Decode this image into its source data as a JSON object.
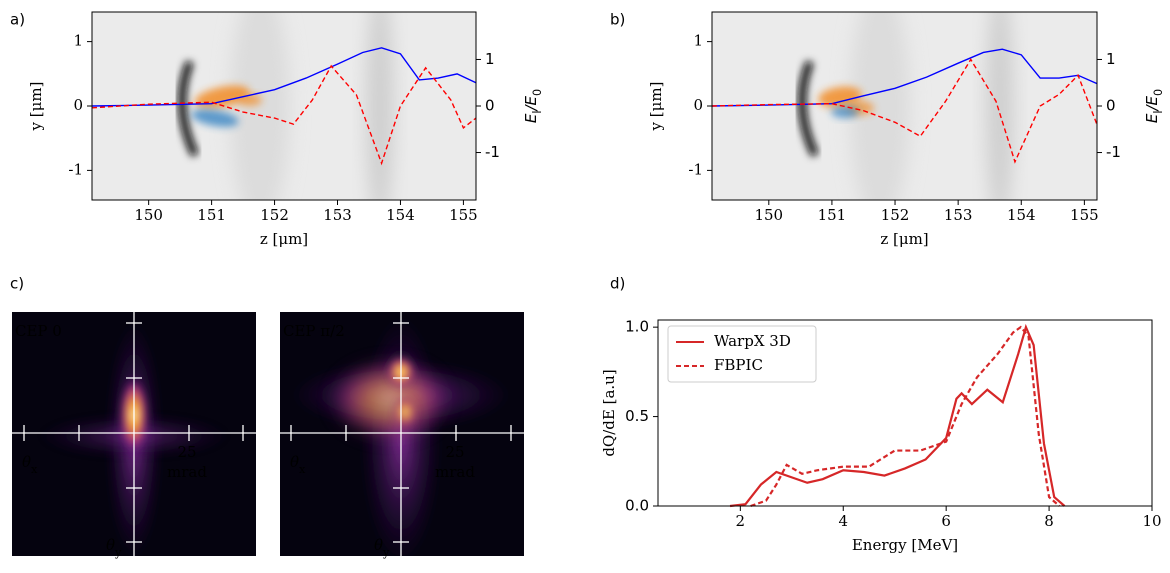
{
  "chart_data": [
    {
      "type": "line",
      "panel_label": "a)",
      "x_label": "z [μm]",
      "y_label": "y [μm]",
      "y2_label": [
        "E",
        "l",
        "/E",
        "0"
      ],
      "xlim": [
        149.1,
        155.2
      ],
      "xticks": [
        150,
        151,
        152,
        153,
        154,
        155
      ],
      "ylim": [
        -1.46,
        1.46
      ],
      "yticks": [
        -1,
        0,
        1
      ],
      "y2lim": [
        -2.02,
        2.02
      ],
      "y2ticks": [
        -1,
        0,
        1
      ],
      "series": [
        {
          "color": "#0000ff",
          "axis": "y2",
          "dash": false,
          "x": [
            149.1,
            150,
            151,
            151.5,
            152,
            152.5,
            153,
            153.4,
            153.7,
            154,
            154.3,
            154.6,
            154.9,
            155.2
          ],
          "values": [
            0,
            0.02,
            0.05,
            0.2,
            0.35,
            0.6,
            0.9,
            1.15,
            1.25,
            1.12,
            0.56,
            0.6,
            0.69,
            0.5
          ]
        },
        {
          "color": "#ff0000",
          "axis": "y2",
          "dash": true,
          "x": [
            149.1,
            150,
            151,
            151.5,
            152,
            152.3,
            152.6,
            152.9,
            153.3,
            153.7,
            154,
            154.4,
            154.8,
            155.0,
            155.2
          ],
          "values": [
            -0.04,
            0.04,
            0.08,
            -0.13,
            -0.26,
            -0.39,
            0.13,
            0.86,
            0.24,
            -1.23,
            0.0,
            0.82,
            0.13,
            -0.47,
            -0.26
          ]
        }
      ]
    },
    {
      "type": "line",
      "panel_label": "b)",
      "x_label": "z [μm]",
      "y_label": "y [μm]",
      "y2_label": [
        "E",
        "l",
        "/E",
        "0"
      ],
      "xlim": [
        149.1,
        155.2
      ],
      "xticks": [
        150,
        151,
        152,
        153,
        154,
        155
      ],
      "ylim": [
        -1.46,
        1.46
      ],
      "yticks": [
        -1,
        0,
        1
      ],
      "y2lim": [
        -2.02,
        2.02
      ],
      "y2ticks": [
        -1,
        0,
        1
      ],
      "series": [
        {
          "color": "#0000ff",
          "axis": "y2",
          "dash": false,
          "x": [
            149.1,
            150,
            151,
            151.5,
            152,
            152.5,
            153,
            153.4,
            153.7,
            154,
            154.3,
            154.6,
            154.9,
            155.2
          ],
          "values": [
            0,
            0.02,
            0.05,
            0.22,
            0.38,
            0.62,
            0.92,
            1.15,
            1.22,
            1.1,
            0.6,
            0.6,
            0.66,
            0.48
          ]
        },
        {
          "color": "#ff0000",
          "axis": "y2",
          "dash": true,
          "x": [
            149.1,
            150,
            151,
            151.5,
            152,
            152.4,
            152.8,
            153.2,
            153.6,
            153.9,
            154.3,
            154.6,
            154.9,
            155.2
          ],
          "values": [
            0,
            0.03,
            0.05,
            -0.1,
            -0.35,
            -0.65,
            0.1,
            1.0,
            0.1,
            -1.2,
            0.0,
            0.25,
            0.66,
            -0.4
          ]
        }
      ]
    },
    {
      "type": "heatmap",
      "panel_label": "c)",
      "panels": [
        {
          "title": "CEP 0"
        },
        {
          "title": "CEP π/2"
        }
      ],
      "x_label": [
        "θ",
        "x"
      ],
      "y_label": [
        "θ",
        "y"
      ],
      "scale_label": [
        "25",
        "mrad"
      ]
    },
    {
      "type": "line",
      "panel_label": "d)",
      "x_label": "Energy [MeV]",
      "y_label": "dQ/dE [a.u]",
      "xlim": [
        0.4,
        10
      ],
      "xticks": [
        2,
        4,
        6,
        8,
        10
      ],
      "ylim": [
        0,
        1.04
      ],
      "yticks": [
        {
          "value": 0,
          "label": "0.0"
        },
        {
          "value": 0.5,
          "label": "0.5"
        },
        {
          "value": 1,
          "label": "1.0"
        }
      ],
      "legend": "upper left",
      "series": [
        {
          "name": "WarpX 3D",
          "color": "#d62728",
          "dash": false,
          "x": [
            1.8,
            2.1,
            2.4,
            2.7,
            3.0,
            3.3,
            3.6,
            4.0,
            4.4,
            4.8,
            5.2,
            5.6,
            6.0,
            6.2,
            6.3,
            6.5,
            6.8,
            7.1,
            7.4,
            7.55,
            7.7,
            7.9,
            8.1,
            8.3
          ],
          "values": [
            0,
            0.01,
            0.12,
            0.19,
            0.16,
            0.13,
            0.15,
            0.2,
            0.19,
            0.17,
            0.21,
            0.26,
            0.38,
            0.6,
            0.63,
            0.57,
            0.65,
            0.58,
            0.85,
            1.0,
            0.9,
            0.35,
            0.05,
            0
          ]
        },
        {
          "name": "FBPIC",
          "color": "#d62728",
          "dash": true,
          "x": [
            2.2,
            2.5,
            2.7,
            2.9,
            3.2,
            3.5,
            4.0,
            4.5,
            5.0,
            5.5,
            6.0,
            6.3,
            6.6,
            7.0,
            7.3,
            7.45,
            7.6,
            7.8,
            8.0,
            8.2
          ],
          "values": [
            0,
            0.03,
            0.12,
            0.23,
            0.18,
            0.2,
            0.22,
            0.22,
            0.31,
            0.31,
            0.36,
            0.57,
            0.72,
            0.85,
            0.97,
            1.0,
            0.95,
            0.4,
            0.05,
            0
          ]
        }
      ]
    }
  ]
}
